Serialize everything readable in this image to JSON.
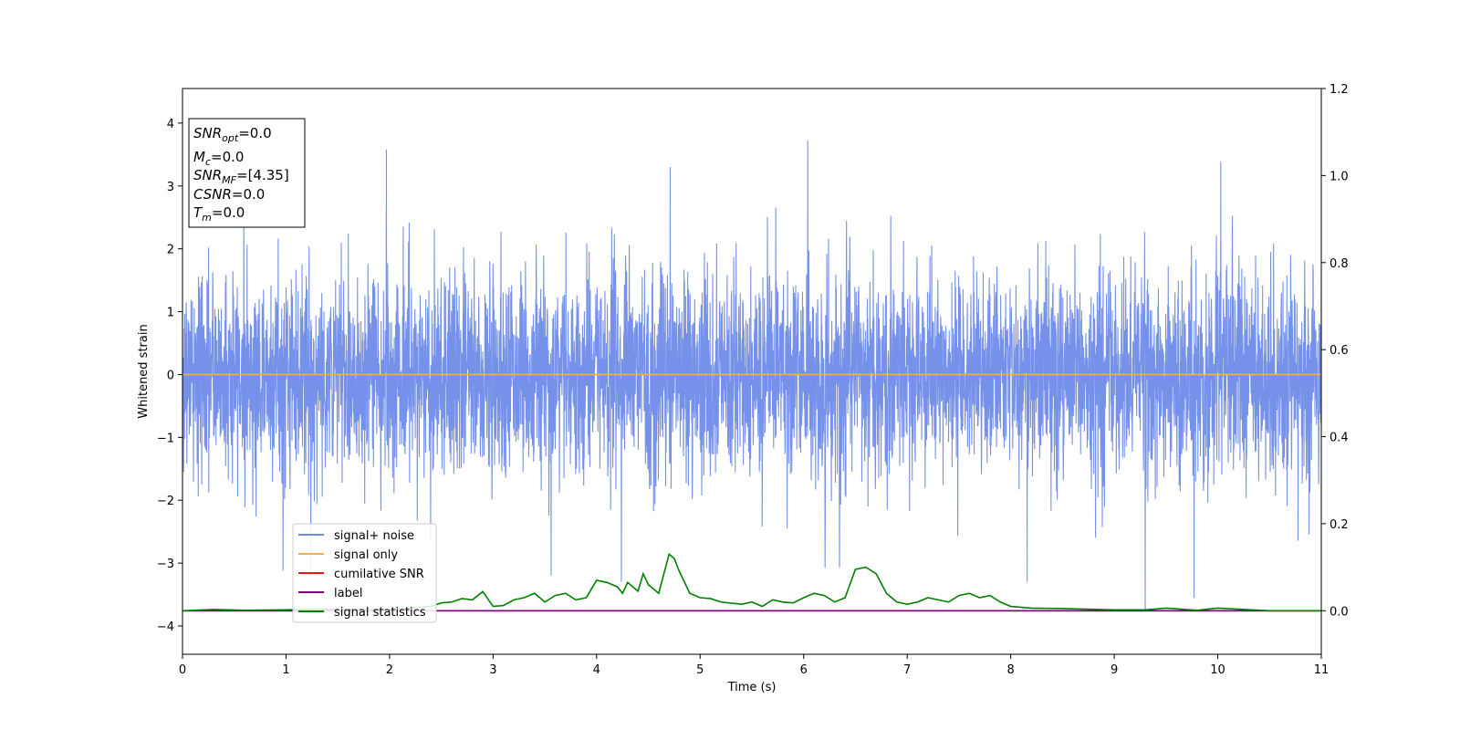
{
  "chart_data": {
    "type": "line",
    "xlabel": "Time (s)",
    "ylabel": "Whitened strain",
    "xlim": [
      0,
      11
    ],
    "ylim": [
      -4.45,
      4.55
    ],
    "y2lim": [
      -0.1,
      1.2
    ],
    "x_ticks": [
      "0",
      "1",
      "2",
      "3",
      "4",
      "5",
      "6",
      "7",
      "8",
      "9",
      "10",
      "11"
    ],
    "y_ticks": [
      {
        "value": 4,
        "label": "4"
      },
      {
        "value": 3,
        "label": "3"
      },
      {
        "value": 2,
        "label": "2"
      },
      {
        "value": 1,
        "label": "1"
      },
      {
        "value": 0,
        "label": "0"
      },
      {
        "value": -1,
        "label": "−1"
      },
      {
        "value": -2,
        "label": "−2"
      },
      {
        "value": -3,
        "label": "−3"
      },
      {
        "value": -4,
        "label": "−4"
      }
    ],
    "y2_ticks": [
      {
        "value": 1.2,
        "label": "1.2"
      },
      {
        "value": 1.0,
        "label": "1.0"
      },
      {
        "value": 0.8,
        "label": "0.8"
      },
      {
        "value": 0.6,
        "label": "0.6"
      },
      {
        "value": 0.4,
        "label": "0.4"
      },
      {
        "value": 0.2,
        "label": "0.2"
      },
      {
        "value": 0.0,
        "label": "0.0"
      }
    ],
    "grid": false,
    "legend_position": "lower-left",
    "series": [
      {
        "name": "signal+ noise",
        "color": "#6f8be8",
        "axis": "left",
        "kind": "noise",
        "duration": 11,
        "amplitude_std": 0.8,
        "range": [
          -3.75,
          3.72
        ],
        "extremes": [
          {
            "x": 1.97,
            "y": 3.58
          },
          {
            "x": 6.04,
            "y": 3.72
          },
          {
            "x": 4.71,
            "y": 3.3
          },
          {
            "x": 10.03,
            "y": 3.38
          },
          {
            "x": 9.3,
            "y": -3.75
          },
          {
            "x": 9.77,
            "y": -3.55
          },
          {
            "x": 4.24,
            "y": -3.3
          },
          {
            "x": 8.16,
            "y": -3.3
          },
          {
            "x": 1.24,
            "y": -3.2
          },
          {
            "x": 0.97,
            "y": -3.12
          },
          {
            "x": 3.56,
            "y": -3.2
          }
        ]
      },
      {
        "name": "signal only",
        "color": "#f5b041",
        "axis": "left",
        "x": [
          0,
          11
        ],
        "y": [
          0,
          0
        ]
      },
      {
        "name": "cumilative SNR",
        "color": "#e41a1c",
        "axis": "right",
        "x": [
          0,
          11
        ],
        "y": [
          0,
          0
        ]
      },
      {
        "name": "label",
        "color": "#800080",
        "axis": "right",
        "x": [
          0,
          11
        ],
        "y": [
          0,
          0
        ]
      },
      {
        "name": "signal statistics",
        "color": "#008000",
        "axis": "right",
        "x": [
          0,
          0.3,
          0.6,
          1.0,
          1.3,
          1.6,
          2.0,
          2.2,
          2.4,
          2.5,
          2.6,
          2.7,
          2.8,
          2.9,
          3.0,
          3.1,
          3.2,
          3.3,
          3.4,
          3.5,
          3.6,
          3.7,
          3.8,
          3.9,
          3.95,
          4.0,
          4.1,
          4.2,
          4.25,
          4.3,
          4.4,
          4.45,
          4.5,
          4.6,
          4.7,
          4.75,
          4.8,
          4.9,
          5.0,
          5.1,
          5.2,
          5.4,
          5.5,
          5.6,
          5.7,
          5.8,
          5.9,
          6.0,
          6.1,
          6.2,
          6.3,
          6.4,
          6.5,
          6.6,
          6.7,
          6.8,
          6.9,
          7.0,
          7.1,
          7.2,
          7.3,
          7.4,
          7.5,
          7.6,
          7.7,
          7.8,
          7.9,
          8.0,
          8.2,
          8.5,
          9.0,
          9.3,
          9.5,
          9.8,
          10.0,
          10.5,
          11.0
        ],
        "y": [
          0.0,
          0.003,
          0.001,
          0.002,
          0.004,
          0.002,
          0.003,
          0.006,
          0.01,
          0.018,
          0.02,
          0.028,
          0.025,
          0.044,
          0.01,
          0.012,
          0.025,
          0.03,
          0.04,
          0.02,
          0.035,
          0.04,
          0.025,
          0.03,
          0.05,
          0.07,
          0.065,
          0.055,
          0.04,
          0.065,
          0.045,
          0.085,
          0.06,
          0.04,
          0.13,
          0.12,
          0.09,
          0.04,
          0.03,
          0.028,
          0.02,
          0.015,
          0.02,
          0.01,
          0.025,
          0.02,
          0.018,
          0.03,
          0.04,
          0.035,
          0.02,
          0.03,
          0.095,
          0.1,
          0.085,
          0.04,
          0.02,
          0.015,
          0.02,
          0.03,
          0.025,
          0.02,
          0.035,
          0.04,
          0.03,
          0.035,
          0.02,
          0.01,
          0.006,
          0.005,
          0.002,
          0.002,
          0.006,
          0.001,
          0.006,
          0.0,
          0.0
        ]
      }
    ],
    "stats_box": [
      {
        "name": "SNR",
        "sub": "opt",
        "value": "=0.0"
      },
      {
        "name": "M",
        "sub": "c",
        "value": "=0.0"
      },
      {
        "name": "SNR",
        "sub": "MF",
        "value": "=[4.35]"
      },
      {
        "name": "CSNR",
        "sub": "",
        "value": "=0.0"
      },
      {
        "name": "T",
        "sub": "m",
        "value": "=0.0"
      }
    ]
  }
}
